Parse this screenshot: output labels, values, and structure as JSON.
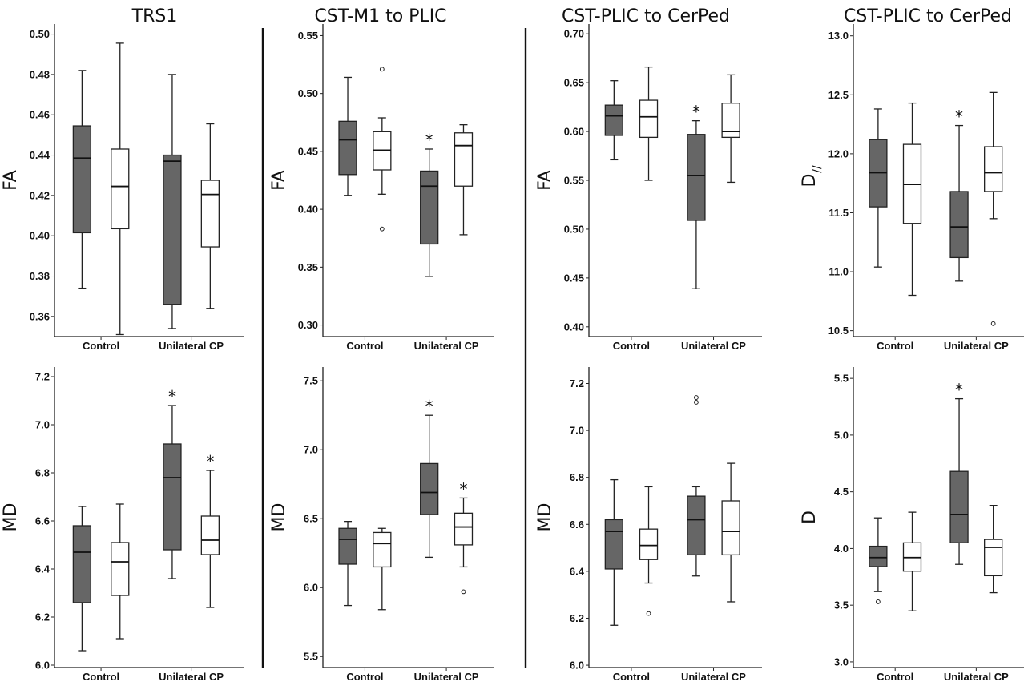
{
  "colors": {
    "ucp": "#666666",
    "control": "#ffffff",
    "stroke": "#222222"
  },
  "column_titles": [
    "TRS1",
    "CST-M1 to PLIC",
    "CST-PLIC to CerPed",
    "CST-PLIC to CerPed"
  ],
  "chart_data": [
    {
      "type": "box",
      "id": "trs1-fa",
      "ylabel": "FA",
      "ylim": [
        0.35,
        0.505
      ],
      "ticks": [
        "0.36",
        "0.38",
        "0.40",
        "0.42",
        "0.44",
        "0.46",
        "0.48",
        "0.50"
      ],
      "categories": [
        "Control",
        "Unilateral CP"
      ],
      "boxes": [
        {
          "cat": 0,
          "fill": "ucp",
          "whislo": 0.374,
          "q1": 0.4015,
          "med": 0.4385,
          "q3": 0.4545,
          "whishi": 0.482,
          "fliers": [],
          "star": false
        },
        {
          "cat": 0,
          "fill": "control",
          "whislo": 0.351,
          "q1": 0.4035,
          "med": 0.4245,
          "q3": 0.443,
          "whishi": 0.4955,
          "fliers": [],
          "star": false
        },
        {
          "cat": 1,
          "fill": "ucp",
          "whislo": 0.354,
          "q1": 0.366,
          "med": 0.437,
          "q3": 0.44,
          "whishi": 0.48,
          "fliers": [],
          "star": false
        },
        {
          "cat": 1,
          "fill": "control",
          "whislo": 0.364,
          "q1": 0.3945,
          "med": 0.4205,
          "q3": 0.4275,
          "whishi": 0.4555,
          "fliers": [],
          "star": false
        }
      ]
    },
    {
      "type": "box",
      "id": "m1plic-fa",
      "ylabel": "FA",
      "ylim": [
        0.29,
        0.56
      ],
      "ticks": [
        "0.30",
        "0.35",
        "0.40",
        "0.45",
        "0.50",
        "0.55"
      ],
      "categories": [
        "Control",
        "Unilateral CP"
      ],
      "boxes": [
        {
          "cat": 0,
          "fill": "ucp",
          "whislo": 0.412,
          "q1": 0.43,
          "med": 0.46,
          "q3": 0.476,
          "whishi": 0.514,
          "fliers": [],
          "star": false
        },
        {
          "cat": 0,
          "fill": "control",
          "whislo": 0.413,
          "q1": 0.434,
          "med": 0.451,
          "q3": 0.467,
          "whishi": 0.479,
          "fliers": [
            0.521,
            0.383
          ],
          "star": false
        },
        {
          "cat": 1,
          "fill": "ucp",
          "whislo": 0.342,
          "q1": 0.37,
          "med": 0.42,
          "q3": 0.433,
          "whishi": 0.452,
          "fliers": [],
          "star": true
        },
        {
          "cat": 1,
          "fill": "control",
          "whislo": 0.378,
          "q1": 0.42,
          "med": 0.455,
          "q3": 0.466,
          "whishi": 0.473,
          "fliers": [],
          "star": false
        }
      ]
    },
    {
      "type": "box",
      "id": "plic-cerped-fa",
      "ylabel": "FA",
      "ylim": [
        0.39,
        0.71
      ],
      "ticks": [
        "0.40",
        "0.45",
        "0.50",
        "0.55",
        "0.60",
        "0.65",
        "0.70"
      ],
      "categories": [
        "Control",
        "Unilateral CP"
      ],
      "boxes": [
        {
          "cat": 0,
          "fill": "ucp",
          "whislo": 0.571,
          "q1": 0.596,
          "med": 0.616,
          "q3": 0.627,
          "whishi": 0.652,
          "fliers": [],
          "star": false
        },
        {
          "cat": 0,
          "fill": "control",
          "whislo": 0.55,
          "q1": 0.594,
          "med": 0.615,
          "q3": 0.632,
          "whishi": 0.666,
          "fliers": [],
          "star": false
        },
        {
          "cat": 1,
          "fill": "ucp",
          "whislo": 0.439,
          "q1": 0.509,
          "med": 0.555,
          "q3": 0.597,
          "whishi": 0.611,
          "fliers": [],
          "star": true
        },
        {
          "cat": 1,
          "fill": "control",
          "whislo": 0.548,
          "q1": 0.594,
          "med": 0.6,
          "q3": 0.629,
          "whishi": 0.658,
          "fliers": [],
          "star": false
        }
      ]
    },
    {
      "type": "box",
      "id": "plic-cerped-dpar",
      "ylabel": "D",
      "ylabel_sub": "//",
      "ylim": [
        10.45,
        13.1
      ],
      "ticks": [
        "10.5",
        "11.0",
        "11.5",
        "12.0",
        "12.5",
        "13.0"
      ],
      "categories": [
        "Control",
        "Unilateral CP"
      ],
      "boxes": [
        {
          "cat": 0,
          "fill": "ucp",
          "whislo": 11.04,
          "q1": 11.55,
          "med": 11.84,
          "q3": 12.12,
          "whishi": 12.38,
          "fliers": [],
          "star": false
        },
        {
          "cat": 0,
          "fill": "control",
          "whislo": 10.8,
          "q1": 11.41,
          "med": 11.74,
          "q3": 12.08,
          "whishi": 12.43,
          "fliers": [],
          "star": false
        },
        {
          "cat": 1,
          "fill": "ucp",
          "whislo": 10.92,
          "q1": 11.12,
          "med": 11.38,
          "q3": 11.68,
          "whishi": 12.24,
          "fliers": [],
          "star": true
        },
        {
          "cat": 1,
          "fill": "control",
          "whislo": 11.45,
          "q1": 11.68,
          "med": 11.84,
          "q3": 12.06,
          "whishi": 12.52,
          "fliers": [
            10.56
          ],
          "star": false
        }
      ]
    },
    {
      "type": "box",
      "id": "trs1-md",
      "ylabel": "MD",
      "ylim": [
        5.99,
        7.24
      ],
      "ticks": [
        "6.0",
        "6.2",
        "6.4",
        "6.6",
        "6.8",
        "7.0",
        "7.2"
      ],
      "categories": [
        "Control",
        "Unilateral CP"
      ],
      "boxes": [
        {
          "cat": 0,
          "fill": "ucp",
          "whislo": 6.06,
          "q1": 6.26,
          "med": 6.47,
          "q3": 6.58,
          "whishi": 6.66,
          "fliers": [],
          "star": false
        },
        {
          "cat": 0,
          "fill": "control",
          "whislo": 6.11,
          "q1": 6.29,
          "med": 6.43,
          "q3": 6.51,
          "whishi": 6.67,
          "fliers": [],
          "star": false
        },
        {
          "cat": 1,
          "fill": "ucp",
          "whislo": 6.36,
          "q1": 6.48,
          "med": 6.78,
          "q3": 6.92,
          "whishi": 7.08,
          "fliers": [],
          "star": true
        },
        {
          "cat": 1,
          "fill": "control",
          "whislo": 6.24,
          "q1": 6.46,
          "med": 6.52,
          "q3": 6.62,
          "whishi": 6.81,
          "fliers": [],
          "star": true
        }
      ]
    },
    {
      "type": "box",
      "id": "m1plic-md",
      "ylabel": "MD",
      "ylim": [
        5.42,
        7.6
      ],
      "ticks": [
        "5.5",
        "6.0",
        "6.5",
        "7.0",
        "7.5"
      ],
      "categories": [
        "Control",
        "Unilateral CP"
      ],
      "boxes": [
        {
          "cat": 0,
          "fill": "ucp",
          "whislo": 5.87,
          "q1": 6.17,
          "med": 6.35,
          "q3": 6.43,
          "whishi": 6.48,
          "fliers": [],
          "star": false
        },
        {
          "cat": 0,
          "fill": "control",
          "whislo": 5.84,
          "q1": 6.15,
          "med": 6.32,
          "q3": 6.4,
          "whishi": 6.43,
          "fliers": [],
          "star": false
        },
        {
          "cat": 1,
          "fill": "ucp",
          "whislo": 6.22,
          "q1": 6.53,
          "med": 6.69,
          "q3": 6.9,
          "whishi": 7.25,
          "fliers": [],
          "star": true
        },
        {
          "cat": 1,
          "fill": "control",
          "whislo": 6.15,
          "q1": 6.31,
          "med": 6.44,
          "q3": 6.54,
          "whishi": 6.65,
          "fliers": [
            5.97
          ],
          "star": true
        }
      ]
    },
    {
      "type": "box",
      "id": "plic-cerped-md",
      "ylabel": "MD",
      "ylim": [
        5.99,
        7.27
      ],
      "ticks": [
        "6.0",
        "6.2",
        "6.4",
        "6.6",
        "6.8",
        "7.0",
        "7.2"
      ],
      "categories": [
        "Control",
        "Unilateral CP"
      ],
      "boxes": [
        {
          "cat": 0,
          "fill": "ucp",
          "whislo": 6.17,
          "q1": 6.41,
          "med": 6.57,
          "q3": 6.62,
          "whishi": 6.79,
          "fliers": [],
          "star": false
        },
        {
          "cat": 0,
          "fill": "control",
          "whislo": 6.35,
          "q1": 6.45,
          "med": 6.51,
          "q3": 6.58,
          "whishi": 6.76,
          "fliers": [
            6.22
          ],
          "star": false
        },
        {
          "cat": 1,
          "fill": "ucp",
          "whislo": 6.38,
          "q1": 6.47,
          "med": 6.62,
          "q3": 6.72,
          "whishi": 6.76,
          "fliers": [
            7.14,
            7.12
          ],
          "star": false
        },
        {
          "cat": 1,
          "fill": "control",
          "whislo": 6.27,
          "q1": 6.47,
          "med": 6.57,
          "q3": 6.7,
          "whishi": 6.86,
          "fliers": [],
          "star": false
        }
      ]
    },
    {
      "type": "box",
      "id": "plic-cerped-dperp",
      "ylabel": "D",
      "ylabel_sub": "⊥",
      "ylim": [
        2.95,
        5.6
      ],
      "ticks": [
        "3.0",
        "3.5",
        "4.0",
        "4.5",
        "5.0",
        "5.5"
      ],
      "categories": [
        "Control",
        "Unilateral CP"
      ],
      "boxes": [
        {
          "cat": 0,
          "fill": "ucp",
          "whislo": 3.62,
          "q1": 3.84,
          "med": 3.92,
          "q3": 4.02,
          "whishi": 4.27,
          "fliers": [
            3.53
          ],
          "star": false
        },
        {
          "cat": 0,
          "fill": "control",
          "whislo": 3.45,
          "q1": 3.8,
          "med": 3.92,
          "q3": 4.05,
          "whishi": 4.32,
          "fliers": [],
          "star": false
        },
        {
          "cat": 1,
          "fill": "ucp",
          "whislo": 3.86,
          "q1": 4.05,
          "med": 4.3,
          "q3": 4.68,
          "whishi": 5.32,
          "fliers": [],
          "star": true
        },
        {
          "cat": 1,
          "fill": "control",
          "whislo": 3.61,
          "q1": 3.76,
          "med": 4.01,
          "q3": 4.08,
          "whishi": 4.38,
          "fliers": [],
          "star": false
        }
      ]
    }
  ]
}
